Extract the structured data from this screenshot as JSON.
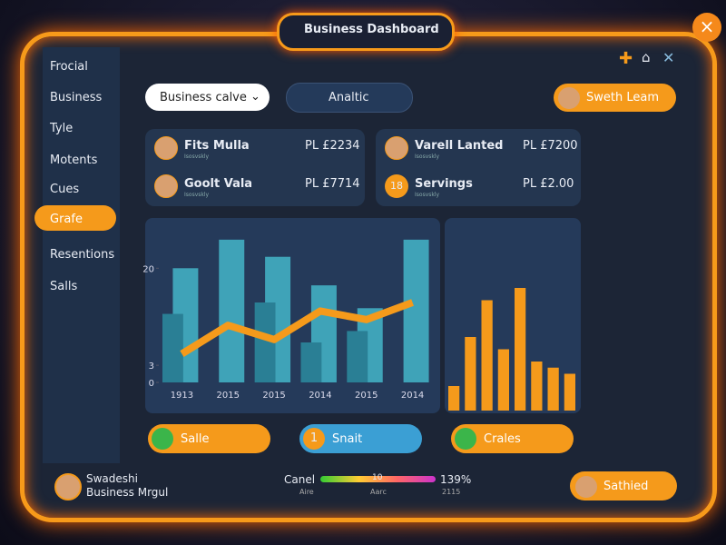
{
  "header": {
    "title": "Business Dashboard"
  },
  "sidebar": {
    "items": [
      "Frocial",
      "Business",
      "Tyle",
      "Motents",
      "Cues",
      "Grafe",
      "Resentions",
      "Salls"
    ]
  },
  "toolbar": {
    "dropdown": "Business calve",
    "tab": "Analtic",
    "user": "Sweth Leam"
  },
  "cards": [
    {
      "name": "Fits Mulla",
      "sub": "Isosvskly",
      "amount": "PL £2234"
    },
    {
      "name": "Goolt Vala",
      "sub": "Isosvskly",
      "amount": "PL £7714"
    },
    {
      "name": "Varell Lanted",
      "sub": "Isosvskly",
      "amount": "PL £7200"
    },
    {
      "badge": "18",
      "name": "Servings",
      "sub": "Isosvskly",
      "amount": "PL £2.00"
    }
  ],
  "chart": {
    "type": "bar",
    "categories": [
      "1913",
      "2015",
      "2015",
      "2014",
      "2015",
      "2014"
    ],
    "series": [
      {
        "color": "#3fa3b8",
        "values": [
          20,
          25,
          22,
          17,
          13,
          25
        ]
      },
      {
        "color": "#2a7f95",
        "values": [
          12,
          0,
          14,
          7,
          9,
          0
        ]
      },
      {
        "color": "#f59a1b",
        "values": [
          5,
          10,
          7.5,
          12.5,
          11,
          14
        ],
        "type": "line"
      }
    ],
    "ylim": [
      0,
      28
    ],
    "yticks": [
      0,
      3,
      20
    ]
  },
  "mini_chart": {
    "type": "bar",
    "color": "#f59a1b",
    "values": [
      2,
      6,
      9,
      5,
      10,
      4,
      3.5,
      3
    ],
    "ylim": [
      0,
      12
    ]
  },
  "buttons": [
    {
      "label": "Salle"
    },
    {
      "badge": "1",
      "label": "Snait"
    },
    {
      "label": "Crales"
    }
  ],
  "footer": {
    "user": "Swadeshi",
    "role": "Business Mrgul",
    "meter_label": "Canel",
    "meter_value": "10",
    "meter_left": "Aire",
    "meter_mid": "Aarc",
    "percent": "139%",
    "percent_sub": "2115",
    "action": "Sathied"
  }
}
